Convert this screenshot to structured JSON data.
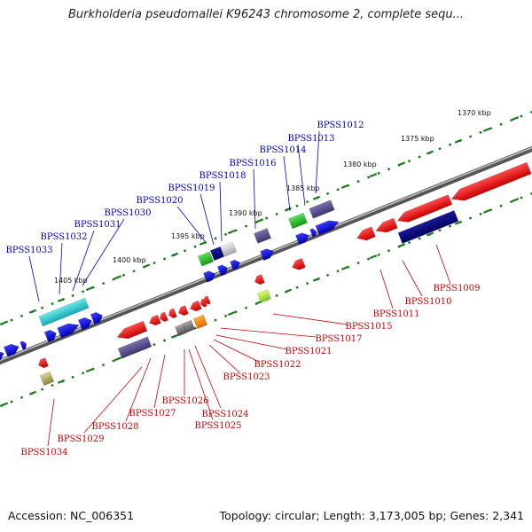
{
  "title": "Burkholderia pseudomallei K96243 chromosome 2, complete sequ...",
  "footer": {
    "accession": "Accession: NC_006351",
    "summary": "Topology: circular; Length: 3,173,005 bp; Genes: 2,341"
  },
  "colors": {
    "upper_label": "#0000cc",
    "lower_label": "#cc0000",
    "backbone": "#777777",
    "tick_major": "#1a7a1a",
    "tick_minor": "#1a7a1a"
  },
  "scale": {
    "ticks": [
      "1370 kbp",
      "1375 kbp",
      "1380 kbp",
      "1385 kbp",
      "1390 kbp",
      "1395 kbp",
      "1400 kbp",
      "1405 kbp"
    ]
  },
  "upper_genes": [
    "BPSS1012",
    "BPSS1013",
    "BPSS1014",
    "BPSS1016",
    "BPSS1018",
    "BPSS1019",
    "BPSS1020",
    "BPSS1030",
    "BPSS1031",
    "BPSS1032",
    "BPSS1033"
  ],
  "lower_genes": [
    "BPSS1009",
    "BPSS1010",
    "BPSS1011",
    "BPSS1015",
    "BPSS1017",
    "BPSS1021",
    "BPSS1022",
    "BPSS1023",
    "BPSS1024",
    "BPSS1025",
    "BPSS1026",
    "BPSS1027",
    "BPSS1028",
    "BPSS1029",
    "BPSS1034"
  ]
}
